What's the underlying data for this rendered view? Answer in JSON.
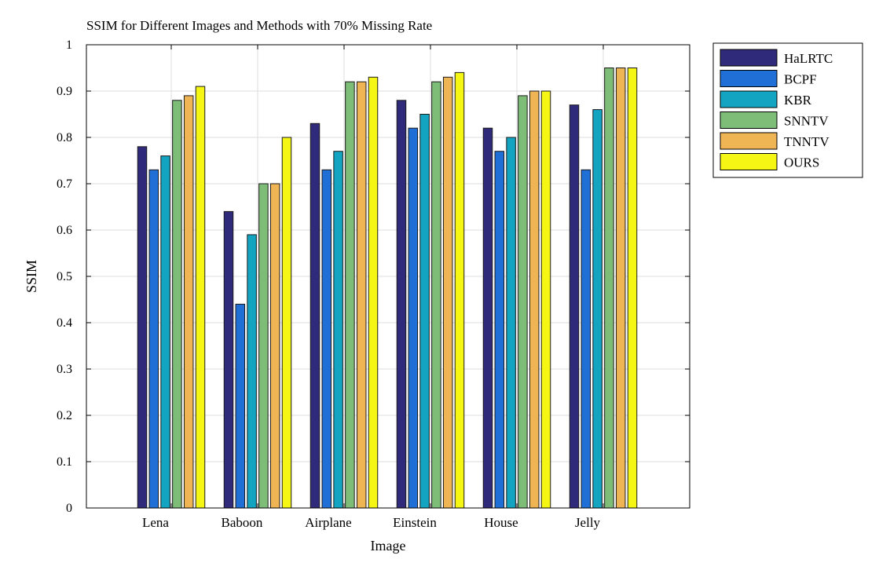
{
  "chart_data": {
    "type": "bar",
    "title": "SSIM for Different Images and Methods with 70% Missing Rate",
    "xlabel": "Image",
    "ylabel": "SSIM",
    "ylim": [
      0,
      1
    ],
    "yticks": [
      "0",
      "0.1",
      "0.2",
      "0.3",
      "0.4",
      "0.5",
      "0.6",
      "0.7",
      "0.8",
      "0.9",
      "1"
    ],
    "grid": true,
    "legend_position": "outside-top-right",
    "categories": [
      "Lena",
      "Baboon",
      "Airplane",
      "Einstein",
      "House",
      "Jelly"
    ],
    "series": [
      {
        "name": "HaLRTC",
        "color": "#2f2b7a",
        "values": [
          0.78,
          0.64,
          0.83,
          0.88,
          0.82,
          0.87
        ]
      },
      {
        "name": "BCPF",
        "color": "#1f6fd6",
        "values": [
          0.73,
          0.44,
          0.73,
          0.82,
          0.77,
          0.73
        ]
      },
      {
        "name": "KBR",
        "color": "#12a4c0",
        "values": [
          0.76,
          0.59,
          0.77,
          0.85,
          0.8,
          0.86
        ]
      },
      {
        "name": "SNNTV",
        "color": "#7dbd78",
        "values": [
          0.88,
          0.7,
          0.92,
          0.92,
          0.89,
          0.95
        ]
      },
      {
        "name": "TNNTV",
        "color": "#efb555",
        "values": [
          0.89,
          0.7,
          0.92,
          0.93,
          0.9,
          0.95
        ]
      },
      {
        "name": "OURS",
        "color": "#f6f615",
        "values": [
          0.91,
          0.8,
          0.93,
          0.94,
          0.9,
          0.95
        ]
      }
    ]
  }
}
